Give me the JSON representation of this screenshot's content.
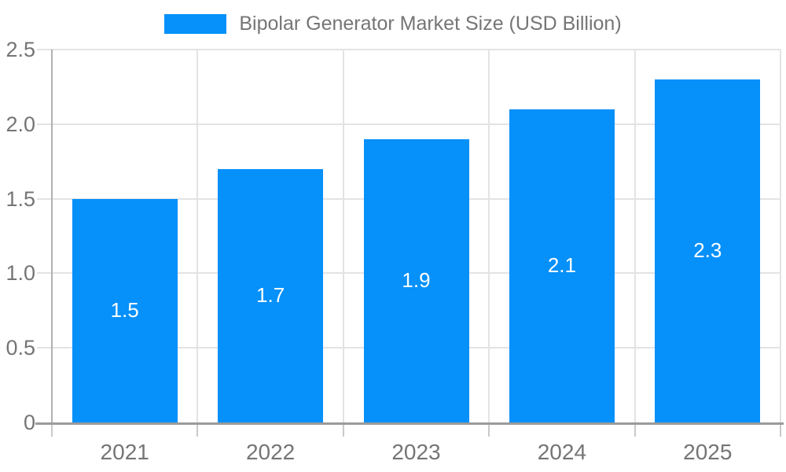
{
  "legend": {
    "label": "Bipolar Generator Market Size (USD Billion)"
  },
  "chart_data": {
    "type": "bar",
    "title": "Bipolar Generator Market Size (USD Billion)",
    "categories": [
      "2021",
      "2022",
      "2023",
      "2024",
      "2025"
    ],
    "values": [
      1.5,
      1.7,
      1.9,
      2.1,
      2.3
    ],
    "value_labels": [
      "1.5",
      "1.7",
      "1.9",
      "2.1",
      "2.3"
    ],
    "xlabel": "",
    "ylabel": "",
    "ylim": [
      0,
      2.5
    ],
    "y_ticks": [
      {
        "label": "0",
        "value": 0
      },
      {
        "label": "0.5",
        "value": 0.5
      },
      {
        "label": "1.0",
        "value": 1.0
      },
      {
        "label": "1.5",
        "value": 1.5
      },
      {
        "label": "2.0",
        "value": 2.0
      },
      {
        "label": "2.5",
        "value": 2.5
      }
    ],
    "grid": true,
    "legend_position": "top",
    "colors": {
      "bar": "#0590fa",
      "bar_label": "#ffffff",
      "grid": "#e3e3e3",
      "axis_text": "#757575",
      "y_axis_line": "#b0b0b0",
      "x_axis_line": "#9b9b9b",
      "tick": "#c9c9c9",
      "background": "#ffffff"
    }
  }
}
